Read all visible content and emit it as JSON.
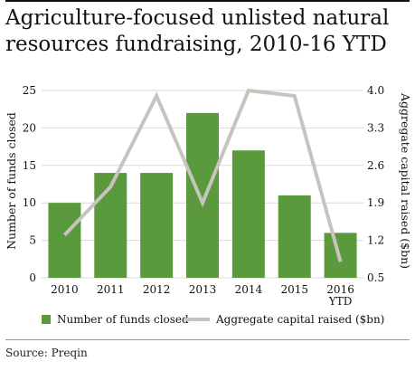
{
  "title": "Agriculture-focused unlisted natural resources fundraising, 2010-16 YTD",
  "source": "Source: Preqin",
  "chart_data": {
    "type": "bar+line",
    "categories": [
      [
        "2010"
      ],
      [
        "2011"
      ],
      [
        "2012"
      ],
      [
        "2013"
      ],
      [
        "2014"
      ],
      [
        "2015"
      ],
      [
        "2016",
        "YTD"
      ]
    ],
    "series": [
      {
        "name": "Number of funds closed",
        "type": "bar",
        "axis": "left",
        "color": "#5a9a3c",
        "values": [
          10,
          14,
          14,
          22,
          17,
          11,
          6
        ]
      },
      {
        "name": "Aggregate capital raised ($bn)",
        "type": "line",
        "axis": "right",
        "color": "#c8c3bd",
        "values": [
          1.3,
          2.2,
          3.9,
          1.9,
          4.0,
          3.9,
          0.8
        ]
      }
    ],
    "ylabel_left": "Number of funds closed",
    "ylabel_right": "Aggregate capital raised ($bn)",
    "ylim_left": [
      0,
      25
    ],
    "yticks_left": [
      "0",
      "5",
      "10",
      "15",
      "20",
      "25"
    ],
    "ylim_right": [
      0.5,
      4.0
    ],
    "yticks_right": [
      "0.5",
      "1.2",
      "1.9",
      "2.6",
      "3.3",
      "4.0"
    ],
    "grid": "horizontal",
    "legend": "bottom"
  }
}
